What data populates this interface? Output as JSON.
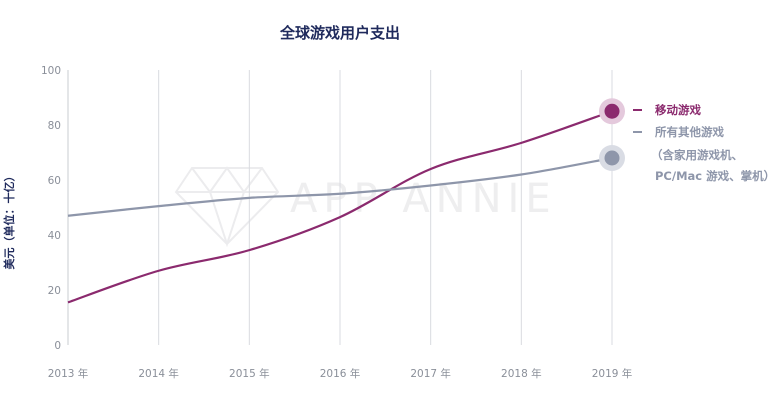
{
  "chart_data": {
    "type": "line",
    "title": "全球游戏用户支出",
    "ylabel": "美元（单位：十亿）",
    "xlabel": "",
    "categories": [
      "2013 年",
      "2014 年",
      "2015 年",
      "2016 年",
      "2017 年",
      "2018 年",
      "2019 年"
    ],
    "yticks": [
      "0",
      "20",
      "40",
      "60",
      "80",
      "100"
    ],
    "ylim": [
      0,
      100
    ],
    "grid": "vertical",
    "series": [
      {
        "name": "移动游戏",
        "values": [
          15.5,
          27,
          34.5,
          46.5,
          64,
          73.5,
          85
        ],
        "color": "#8b2a6e",
        "halo": "#e4c9dc"
      },
      {
        "name": "所有其他游戏",
        "values": [
          47,
          50.5,
          53.5,
          55,
          58,
          62,
          68
        ],
        "color": "#8e96aa",
        "halo": "#d9dce4"
      }
    ],
    "legend": {
      "placement": "right",
      "other_note_line1": "（含家用游戏机、",
      "other_note_line2": "PC/Mac 游戏、掌机）"
    },
    "watermark": "APP ANNIE"
  }
}
